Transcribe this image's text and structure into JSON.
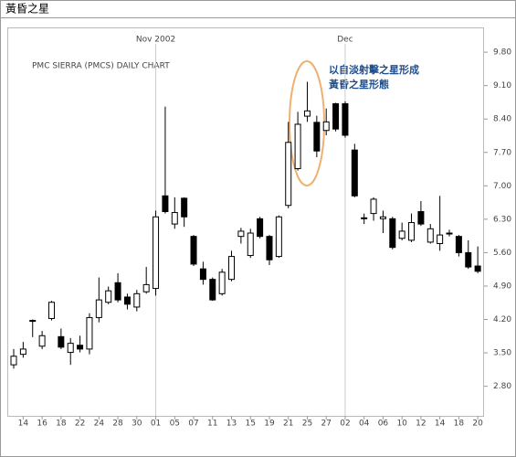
{
  "header": {
    "title": "黃昏之星"
  },
  "chart_data": {
    "type": "candlestick",
    "title": "PMC SIERRA (PMCS) DAILY CHART",
    "annotation": [
      "以自淡射擊之星形成",
      "黃昏之星形態"
    ],
    "month_labels": [
      "Nov 2002",
      "Dec"
    ],
    "categories": [
      null,
      "14",
      null,
      "16",
      null,
      "18",
      null,
      "22",
      null,
      "24",
      null,
      "28",
      null,
      "30",
      null,
      "01",
      null,
      "05",
      null,
      "07",
      null,
      "11",
      null,
      "13",
      null,
      "15",
      null,
      "19",
      null,
      "21",
      null,
      "25",
      null,
      "27",
      null,
      "02",
      null,
      "04",
      null,
      "06",
      null,
      "10",
      null,
      "12",
      null,
      "14",
      null,
      "18",
      null,
      "20"
    ],
    "open": [
      3.25,
      3.47,
      4.18,
      3.64,
      4.22,
      3.84,
      3.51,
      3.66,
      3.58,
      4.24,
      4.56,
      4.97,
      4.67,
      4.46,
      4.78,
      4.85,
      6.79,
      6.2,
      6.74,
      5.94,
      5.26,
      5.04,
      4.74,
      5.04,
      5.94,
      5.54,
      6.31,
      5.94,
      5.52,
      6.59,
      7.36,
      8.46,
      8.33,
      8.16,
      8.72,
      8.72,
      7.75,
      6.33,
      6.42,
      6.31,
      6.31,
      5.9,
      5.86,
      6.46,
      5.82,
      5.79,
      6.0,
      5.94,
      5.6,
      5.32
    ],
    "high": [
      3.58,
      3.73,
      4.2,
      3.96,
      4.59,
      4.01,
      3.81,
      3.86,
      4.33,
      5.08,
      4.89,
      5.17,
      4.74,
      4.82,
      5.3,
      6.48,
      8.66,
      6.76,
      6.76,
      5.97,
      5.41,
      5.08,
      5.26,
      5.64,
      6.12,
      6.1,
      6.35,
      5.97,
      6.38,
      8.34,
      8.55,
      9.18,
      8.47,
      8.62,
      8.74,
      8.77,
      7.88,
      6.42,
      6.76,
      6.48,
      6.35,
      6.23,
      6.42,
      6.68,
      6.2,
      6.79,
      6.08,
      5.97,
      5.86,
      5.73
    ],
    "low": [
      3.17,
      3.4,
      3.83,
      3.58,
      4.18,
      3.58,
      3.25,
      3.51,
      3.47,
      4.14,
      4.52,
      4.56,
      4.41,
      4.37,
      4.74,
      4.7,
      6.42,
      6.1,
      6.14,
      5.32,
      4.93,
      4.59,
      4.7,
      5.0,
      5.79,
      5.49,
      5.9,
      5.34,
      5.49,
      6.53,
      7.32,
      8.34,
      7.6,
      8.06,
      8.14,
      8.01,
      6.76,
      6.2,
      6.27,
      6.01,
      5.67,
      5.86,
      5.82,
      6.16,
      5.79,
      5.64,
      5.94,
      5.52,
      5.26,
      5.17
    ],
    "close": [
      3.43,
      3.58,
      4.18,
      3.86,
      4.56,
      3.62,
      3.7,
      3.58,
      4.24,
      4.61,
      4.8,
      4.61,
      4.52,
      4.74,
      4.93,
      6.35,
      6.46,
      6.44,
      6.35,
      5.36,
      5.04,
      4.61,
      5.19,
      5.52,
      6.05,
      6.01,
      5.94,
      5.45,
      6.35,
      7.91,
      8.29,
      8.57,
      7.73,
      8.34,
      8.19,
      8.06,
      6.79,
      6.31,
      6.72,
      6.35,
      5.71,
      6.05,
      6.23,
      6.2,
      6.1,
      5.97,
      6.01,
      5.6,
      5.3,
      5.21
    ],
    "ylim": [
      2.18,
      10.3
    ],
    "yticks": [
      {
        "value": 9.8,
        "label": "9.80"
      },
      {
        "value": 9.1,
        "label": "9.10"
      },
      {
        "value": 8.4,
        "label": "8.40"
      },
      {
        "value": 7.7,
        "label": "7.70"
      },
      {
        "value": 7.0,
        "label": "7.00"
      },
      {
        "value": 6.3,
        "label": "6.30"
      },
      {
        "value": 5.6,
        "label": "5.60"
      },
      {
        "value": 4.9,
        "label": "4.90"
      },
      {
        "value": 4.2,
        "label": "4.20"
      },
      {
        "value": 3.5,
        "label": "3.50"
      },
      {
        "value": 2.8,
        "label": "2.80"
      }
    ],
    "up_color": "#ffffff",
    "down_color": "#000000"
  }
}
